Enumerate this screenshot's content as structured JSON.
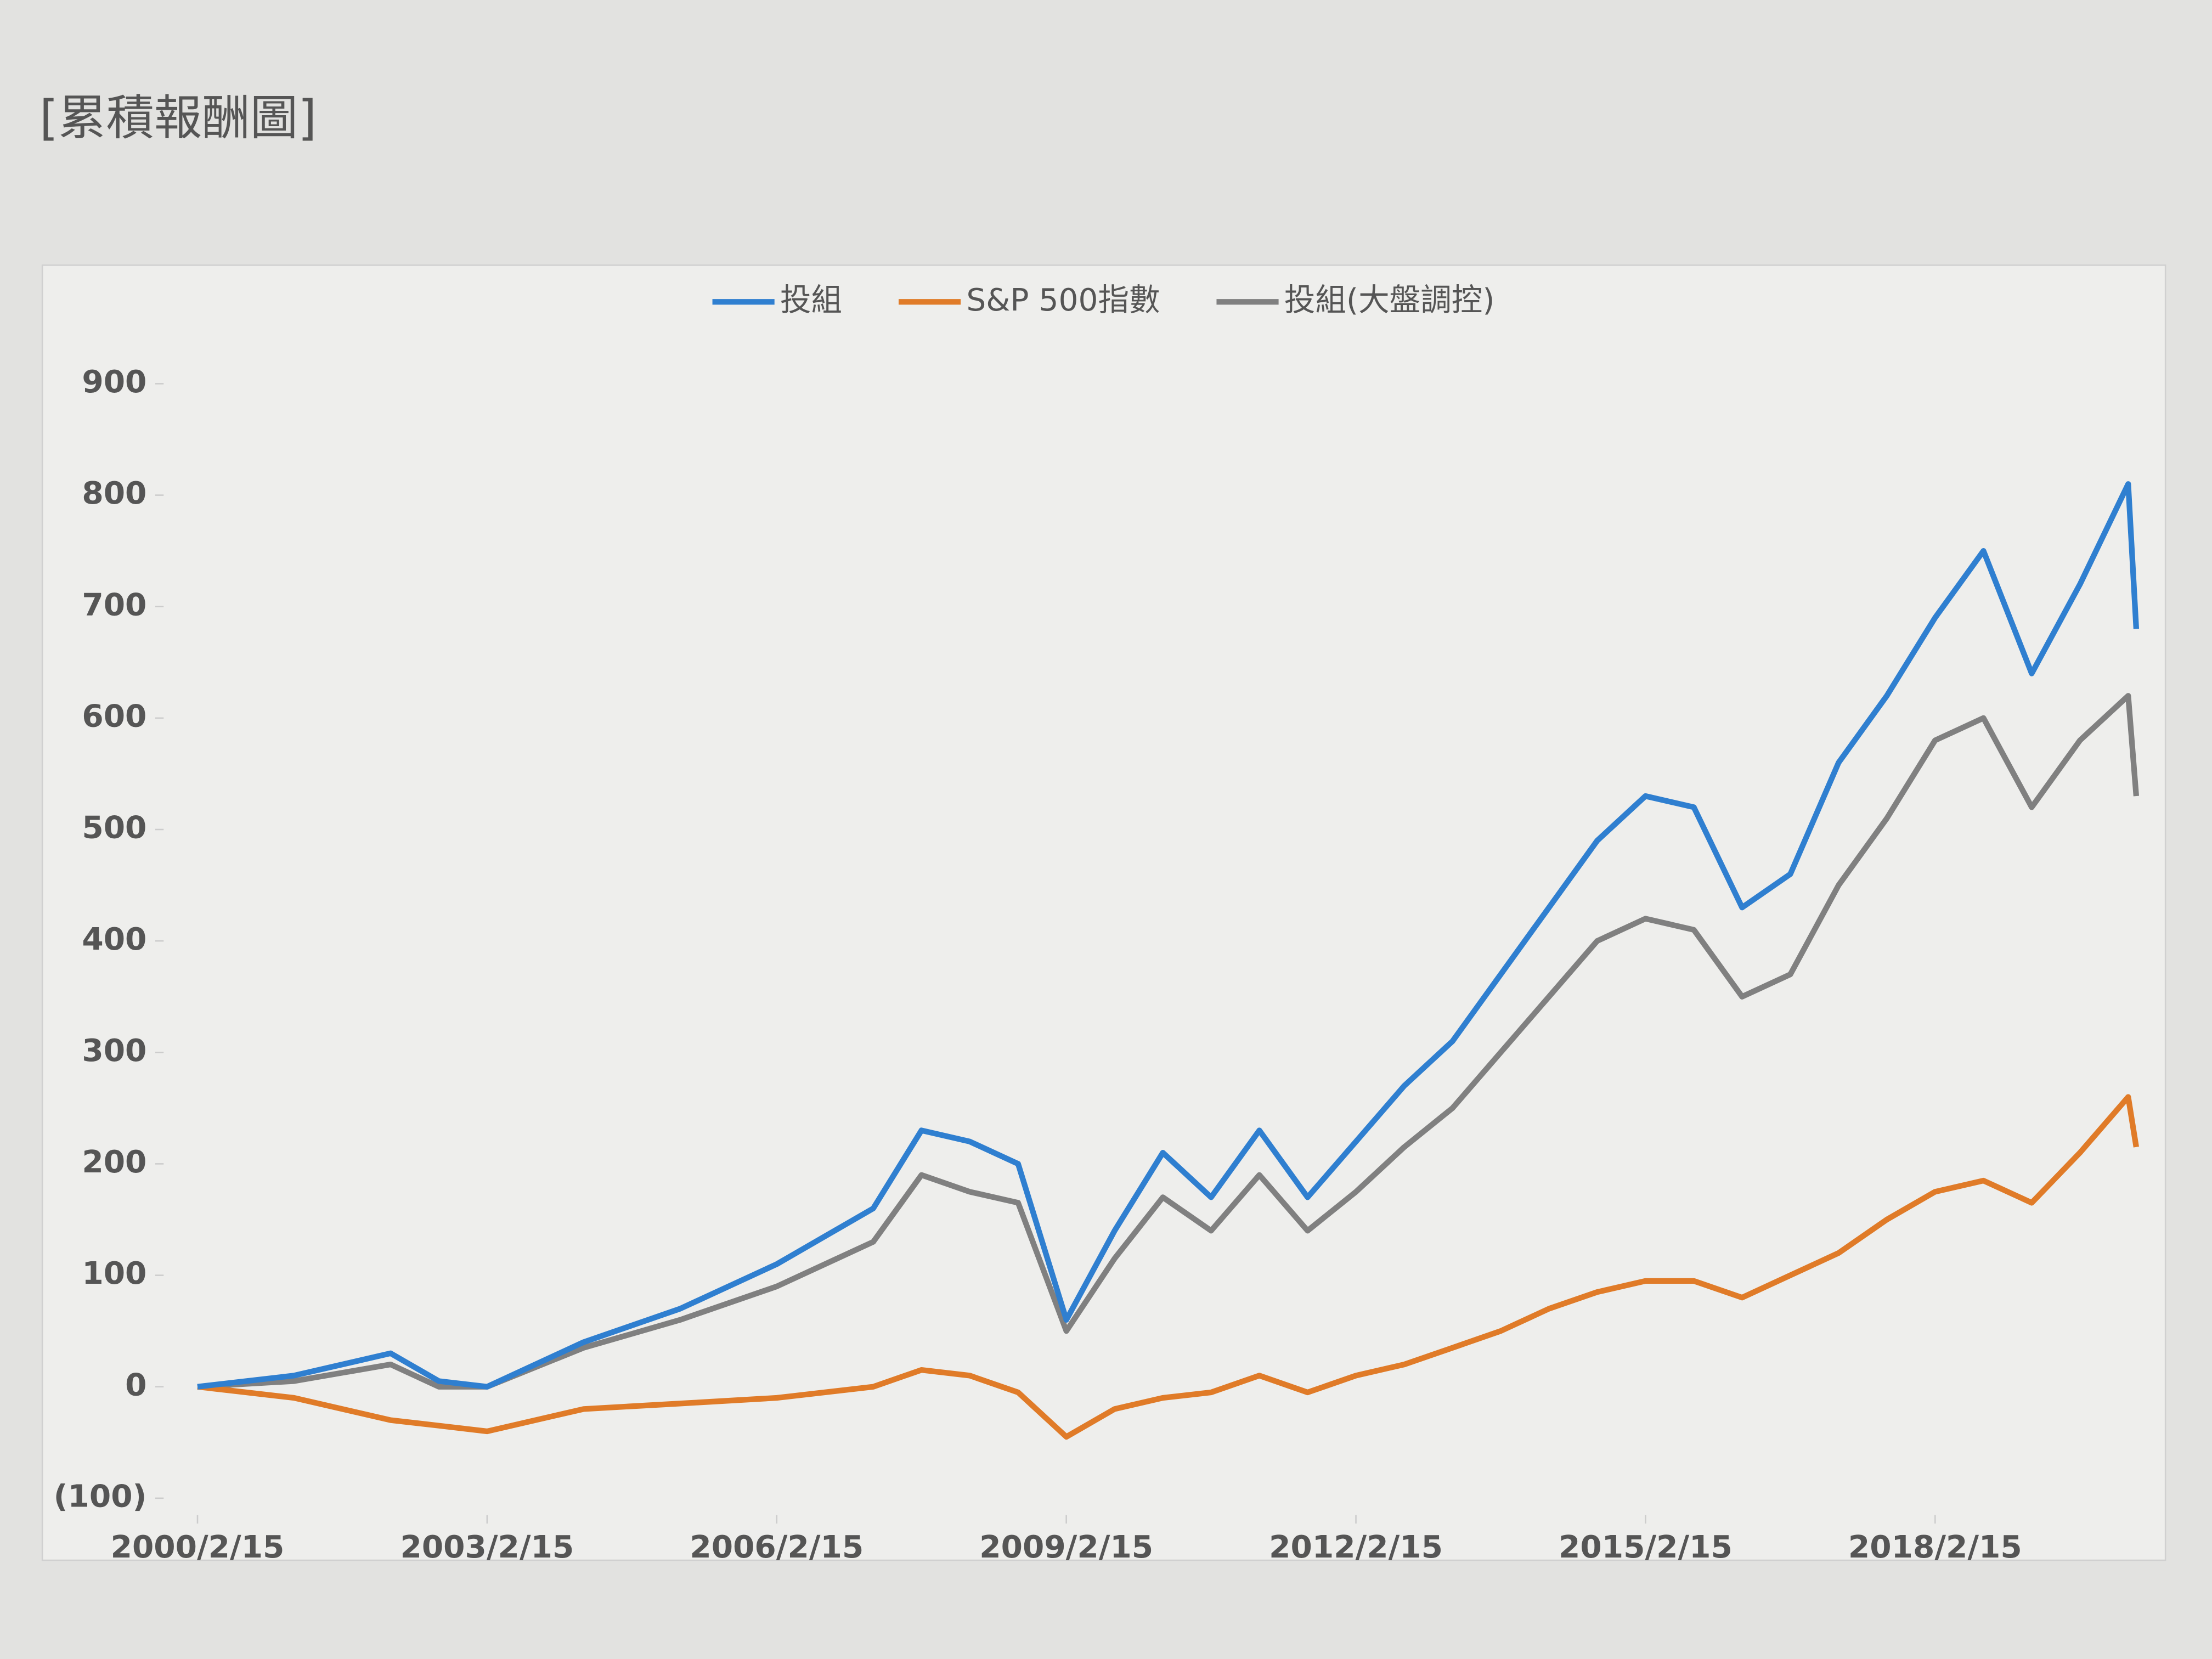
{
  "page_title": "[累積報酬圖]",
  "chart_data": {
    "type": "line",
    "x": [
      "2000/2/15",
      "2001/2/15",
      "2002/2/15",
      "2002/8/15",
      "2003/2/15",
      "2004/2/15",
      "2005/2/15",
      "2006/2/15",
      "2007/2/15",
      "2007/8/15",
      "2008/2/15",
      "2008/8/15",
      "2009/2/15",
      "2009/8/15",
      "2010/2/15",
      "2010/8/15",
      "2011/2/15",
      "2011/8/15",
      "2012/2/15",
      "2012/8/15",
      "2013/2/15",
      "2013/8/15",
      "2014/2/15",
      "2014/8/15",
      "2015/2/15",
      "2015/8/15",
      "2016/2/15",
      "2016/8/15",
      "2017/2/15",
      "2017/8/15",
      "2018/2/15",
      "2018/8/15",
      "2019/2/15",
      "2019/8/15",
      "2020/2/15",
      "2020/3/15"
    ],
    "series": [
      {
        "name": "投組",
        "color": "#2f7fd0",
        "values": [
          0,
          10,
          30,
          5,
          0,
          40,
          70,
          110,
          160,
          230,
          220,
          200,
          60,
          140,
          210,
          170,
          230,
          170,
          220,
          270,
          310,
          370,
          430,
          490,
          530,
          520,
          430,
          460,
          560,
          620,
          690,
          750,
          640,
          720,
          810,
          680
        ]
      },
      {
        "name": "S&P 500指數",
        "color": "#e07b28",
        "values": [
          0,
          -10,
          -30,
          -35,
          -40,
          -20,
          -15,
          -10,
          0,
          15,
          10,
          -5,
          -45,
          -20,
          -10,
          -5,
          10,
          -5,
          10,
          20,
          35,
          50,
          70,
          85,
          95,
          95,
          80,
          100,
          120,
          150,
          175,
          185,
          165,
          210,
          260,
          215
        ]
      },
      {
        "name": "投組(大盤調控)",
        "color": "#808080",
        "values": [
          0,
          5,
          20,
          0,
          0,
          35,
          60,
          90,
          130,
          190,
          175,
          165,
          50,
          115,
          170,
          140,
          190,
          140,
          175,
          215,
          250,
          300,
          350,
          400,
          420,
          410,
          350,
          370,
          450,
          510,
          580,
          600,
          520,
          580,
          620,
          530
        ]
      }
    ],
    "xlim": [
      "2000/2/15",
      "2020/4/15"
    ],
    "xticks": [
      "2000/2/15",
      "2003/2/15",
      "2006/2/15",
      "2009/2/15",
      "2012/2/15",
      "2015/2/15",
      "2018/2/15"
    ],
    "ylim": [
      -100,
      900
    ],
    "yticks": [
      {
        "value": -100,
        "label": "(100)"
      },
      0,
      100,
      200,
      300,
      400,
      500,
      600,
      700,
      800,
      900
    ],
    "legend": "top"
  }
}
